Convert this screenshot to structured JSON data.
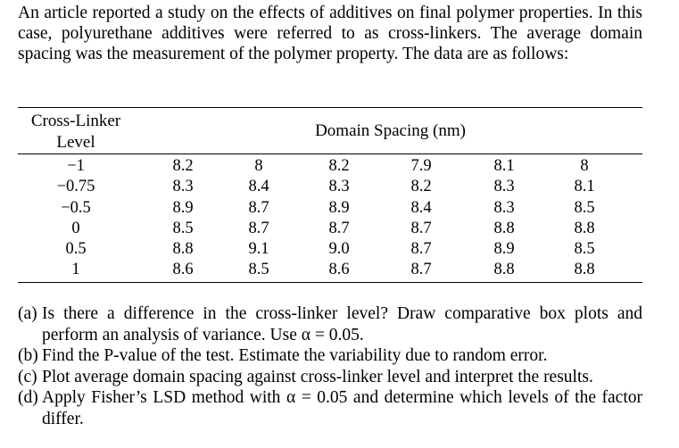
{
  "intro": "An article reported a study on the effects of additives on final polymer properties. In this case, polyurethane additives were referred to as cross-linkers. The average domain spacing was the measurement of the polymer property. The data are as follows:",
  "table": {
    "header_level_line1": "Cross-Linker",
    "header_level_line2": "Level",
    "header_domain": "Domain Spacing (nm)",
    "rows": [
      {
        "level": "−1",
        "values": [
          "8.2",
          "8",
          "8.2",
          "7.9",
          "8.1",
          "8"
        ]
      },
      {
        "level": "−0.75",
        "values": [
          "8.3",
          "8.4",
          "8.3",
          "8.2",
          "8.3",
          "8.1"
        ]
      },
      {
        "level": "−0.5",
        "values": [
          "8.9",
          "8.7",
          "8.9",
          "8.4",
          "8.3",
          "8.5"
        ]
      },
      {
        "level": "0",
        "values": [
          "8.5",
          "8.7",
          "8.7",
          "8.7",
          "8.8",
          "8.8"
        ]
      },
      {
        "level": "0.5",
        "values": [
          "8.8",
          "9.1",
          "9.0",
          "8.7",
          "8.9",
          "8.5"
        ]
      },
      {
        "level": "1",
        "values": [
          "8.6",
          "8.5",
          "8.6",
          "8.7",
          "8.8",
          "8.8"
        ]
      }
    ]
  },
  "questions": [
    {
      "label": "(a)",
      "text": "Is there a difference in the cross-linker level? Draw comparative box plots and perform an analysis of variance. Use α = 0.05."
    },
    {
      "label": "(b)",
      "text": "Find the P-value of the test. Estimate the variability due to random error."
    },
    {
      "label": "(c)",
      "text": "Plot average domain spacing against cross-linker level and interpret the results."
    },
    {
      "label": "(d)",
      "text": "Apply Fisher’s LSD method with α = 0.05 and determine which levels of the factor differ."
    }
  ]
}
